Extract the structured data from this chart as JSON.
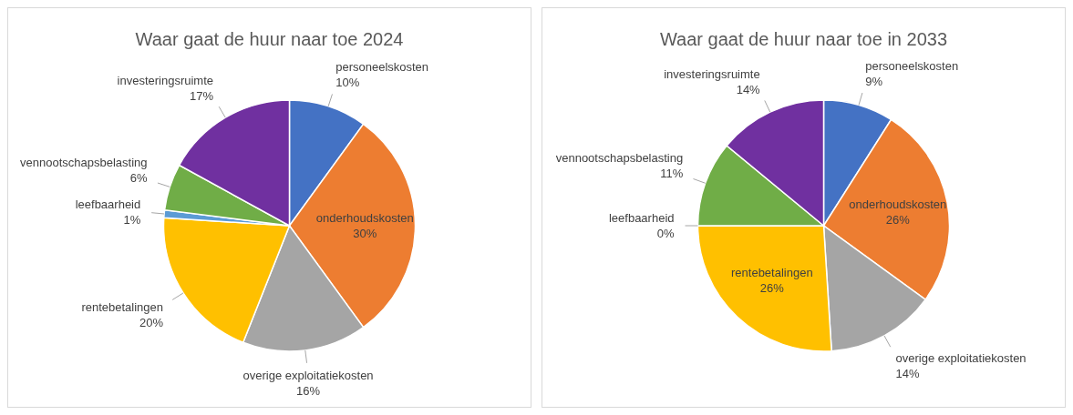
{
  "chart_data": [
    {
      "type": "pie",
      "title": "Waar gaat de huur naar toe 2024",
      "categories": [
        "personeelskosten",
        "onderhoudskosten",
        "overige exploitatiekosten",
        "rentebetalingen",
        "leefbaarheid",
        "vennootschapsbelasting",
        "investeringsruimte"
      ],
      "values": [
        10,
        30,
        16,
        20,
        1,
        6,
        17
      ],
      "value_labels": [
        "10%",
        "30%",
        "16%",
        "20%",
        "1%",
        "6%",
        "17%"
      ],
      "colors": [
        "#4472c4",
        "#ed7d31",
        "#a5a5a5",
        "#ffc000",
        "#5b9bd5",
        "#70ad47",
        "#7030a0"
      ]
    },
    {
      "type": "pie",
      "title": "Waar gaat de huur naar toe in 2033",
      "categories": [
        "personeelskosten",
        "onderhoudskosten",
        "overige exploitatiekosten",
        "rentebetalingen",
        "leefbaarheid",
        "vennootschapsbelasting",
        "investeringsruimte"
      ],
      "values": [
        9,
        26,
        14,
        26,
        0,
        11,
        14
      ],
      "value_labels": [
        "9%",
        "26%",
        "14%",
        "26%",
        "0%",
        "11%",
        "14%"
      ],
      "colors": [
        "#4472c4",
        "#ed7d31",
        "#a5a5a5",
        "#ffc000",
        "#5b9bd5",
        "#70ad47",
        "#7030a0"
      ]
    }
  ]
}
